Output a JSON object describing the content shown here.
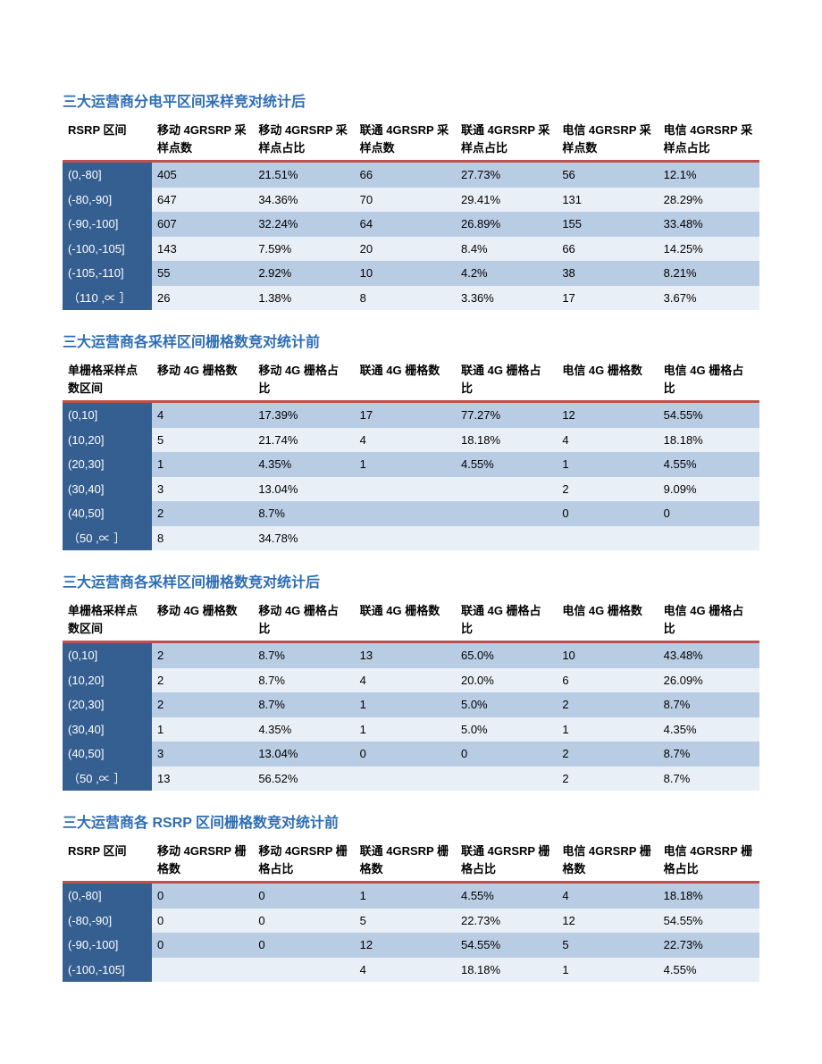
{
  "title_color": "#2e6db5",
  "sep_color": "#c0504d",
  "header_dark_bg": "#355f91",
  "row_odd_bg": "#b8cce4",
  "row_even_bg": "#e9eff7",
  "tables": [
    {
      "title": "三大运营商分电平区间采样竞对统计后",
      "columns": [
        "RSRP 区间",
        "移动 4GRSRP 采样点数",
        "移动 4GRSRP 采样点占比",
        "联通 4GRSRP 采样点数",
        "联通 4GRSRP 采样点占比",
        "电信 4GRSRP 采样点数",
        "电信 4GRSRP 采样点占比"
      ],
      "rows": [
        [
          "(0,-80]",
          "405",
          "21.51%",
          "66",
          "27.73%",
          "56",
          "12.1%"
        ],
        [
          "(-80,-90]",
          "647",
          "34.36%",
          "70",
          "29.41%",
          "131",
          "28.29%"
        ],
        [
          "(-90,-100]",
          "607",
          "32.24%",
          "64",
          "26.89%",
          "155",
          "33.48%"
        ],
        [
          "(-100,-105]",
          "143",
          "7.59%",
          "20",
          "8.4%",
          "66",
          "14.25%"
        ],
        [
          "(-105,-110]",
          "55",
          "2.92%",
          "10",
          "4.2%",
          "38",
          "8.21%"
        ],
        [
          "（110 ,∝ ］",
          "26",
          "1.38%",
          "8",
          "3.36%",
          "17",
          "3.67%"
        ]
      ]
    },
    {
      "title": "三大运营商各采样区间栅格数竞对统计前",
      "columns": [
        "单栅格采样点数区间",
        "移动 4G 栅格数",
        "移动 4G 栅格占比",
        "联通 4G 栅格数",
        "联通 4G 栅格占比",
        "电信 4G 栅格数",
        "电信 4G 栅格占比"
      ],
      "rows": [
        [
          "(0,10]",
          "4",
          "17.39%",
          "17",
          "77.27%",
          "12",
          "54.55%"
        ],
        [
          "(10,20]",
          "5",
          "21.74%",
          "4",
          "18.18%",
          "4",
          "18.18%"
        ],
        [
          "(20,30]",
          "1",
          "4.35%",
          "1",
          "4.55%",
          "1",
          "4.55%"
        ],
        [
          "(30,40]",
          "3",
          "13.04%",
          "",
          "",
          "2",
          "9.09%"
        ],
        [
          "(40,50]",
          "2",
          "8.7%",
          "",
          "",
          "0",
          "0"
        ],
        [
          "（50 ,∝ ］",
          "8",
          "34.78%",
          "",
          "",
          "",
          ""
        ]
      ]
    },
    {
      "title": "三大运营商各采样区间栅格数竞对统计后",
      "columns": [
        "单栅格采样点数区间",
        "移动 4G 栅格数",
        "移动 4G 栅格占比",
        "联通 4G 栅格数",
        "联通 4G 栅格占比",
        "电信 4G 栅格数",
        "电信 4G 栅格占比"
      ],
      "rows": [
        [
          "(0,10]",
          "2",
          "8.7%",
          "13",
          "65.0%",
          "10",
          "43.48%"
        ],
        [
          "(10,20]",
          "2",
          "8.7%",
          "4",
          "20.0%",
          "6",
          "26.09%"
        ],
        [
          "(20,30]",
          "2",
          "8.7%",
          "1",
          "5.0%",
          "2",
          "8.7%"
        ],
        [
          "(30,40]",
          "1",
          "4.35%",
          "1",
          "5.0%",
          "1",
          "4.35%"
        ],
        [
          "(40,50]",
          "3",
          "13.04%",
          "0",
          "0",
          "2",
          "8.7%"
        ],
        [
          "（50 ,∝ ］",
          "13",
          "56.52%",
          "",
          "",
          "2",
          "8.7%"
        ]
      ]
    },
    {
      "title": "三大运营商各 RSRP 区间栅格数竞对统计前",
      "columns": [
        "RSRP 区间",
        "移动 4GRSRP 栅格数",
        "移动 4GRSRP 栅格占比",
        "联通 4GRSRP 栅格数",
        "联通 4GRSRP 栅格占比",
        "电信 4GRSRP 栅格数",
        "电信 4GRSRP 栅格占比"
      ],
      "rows": [
        [
          "(0,-80]",
          "0",
          "0",
          "1",
          "4.55%",
          "4",
          "18.18%"
        ],
        [
          "(-80,-90]",
          "0",
          "0",
          "5",
          "22.73%",
          "12",
          "54.55%"
        ],
        [
          "(-90,-100]",
          "0",
          "0",
          "12",
          "54.55%",
          "5",
          "22.73%"
        ],
        [
          "(-100,-105]",
          "",
          "",
          "4",
          "18.18%",
          "1",
          "4.55%"
        ]
      ]
    }
  ]
}
